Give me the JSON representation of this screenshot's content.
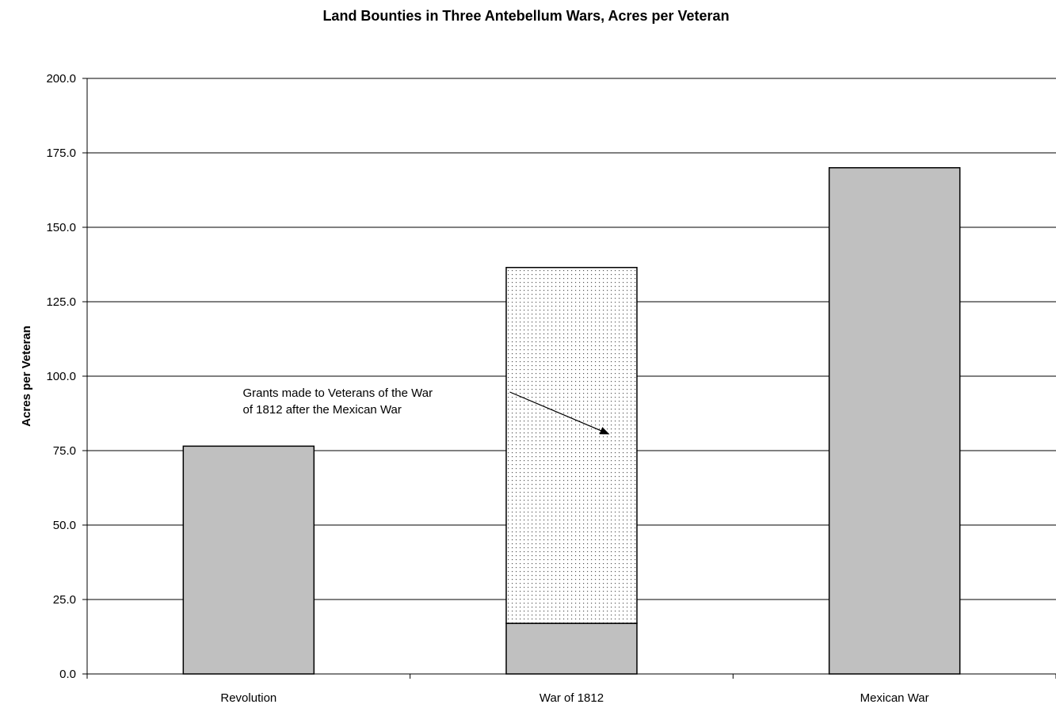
{
  "chart_data": {
    "type": "bar",
    "stacked": true,
    "title": "Land Bounties in Three Antebellum Wars, Acres per Veteran",
    "xlabel": "",
    "ylabel": "Acres per Veteran",
    "ylim": [
      0,
      200
    ],
    "yticks": [
      "0.0",
      "25.0",
      "50.0",
      "75.0",
      "100.0",
      "125.0",
      "150.0",
      "175.0",
      "200.0"
    ],
    "ytick_values": [
      0,
      25,
      50,
      75,
      100,
      125,
      150,
      175,
      200
    ],
    "categories": [
      "Revolution",
      "War of 1812",
      "Mexican War"
    ],
    "grid": true,
    "legend": "none",
    "series": [
      {
        "values": [
          76.5,
          17,
          170
        ],
        "color": "#c0c0c0",
        "pattern": "solid"
      },
      {
        "values": [
          0,
          119.5,
          0
        ],
        "color": "#ffffff",
        "pattern": "dotted"
      }
    ],
    "annotations": [
      {
        "lines": [
          "Grants made to Veterans of the War",
          "of 1812 after the Mexican War"
        ],
        "target_category": "War of 1812",
        "target_series": 1
      }
    ]
  }
}
